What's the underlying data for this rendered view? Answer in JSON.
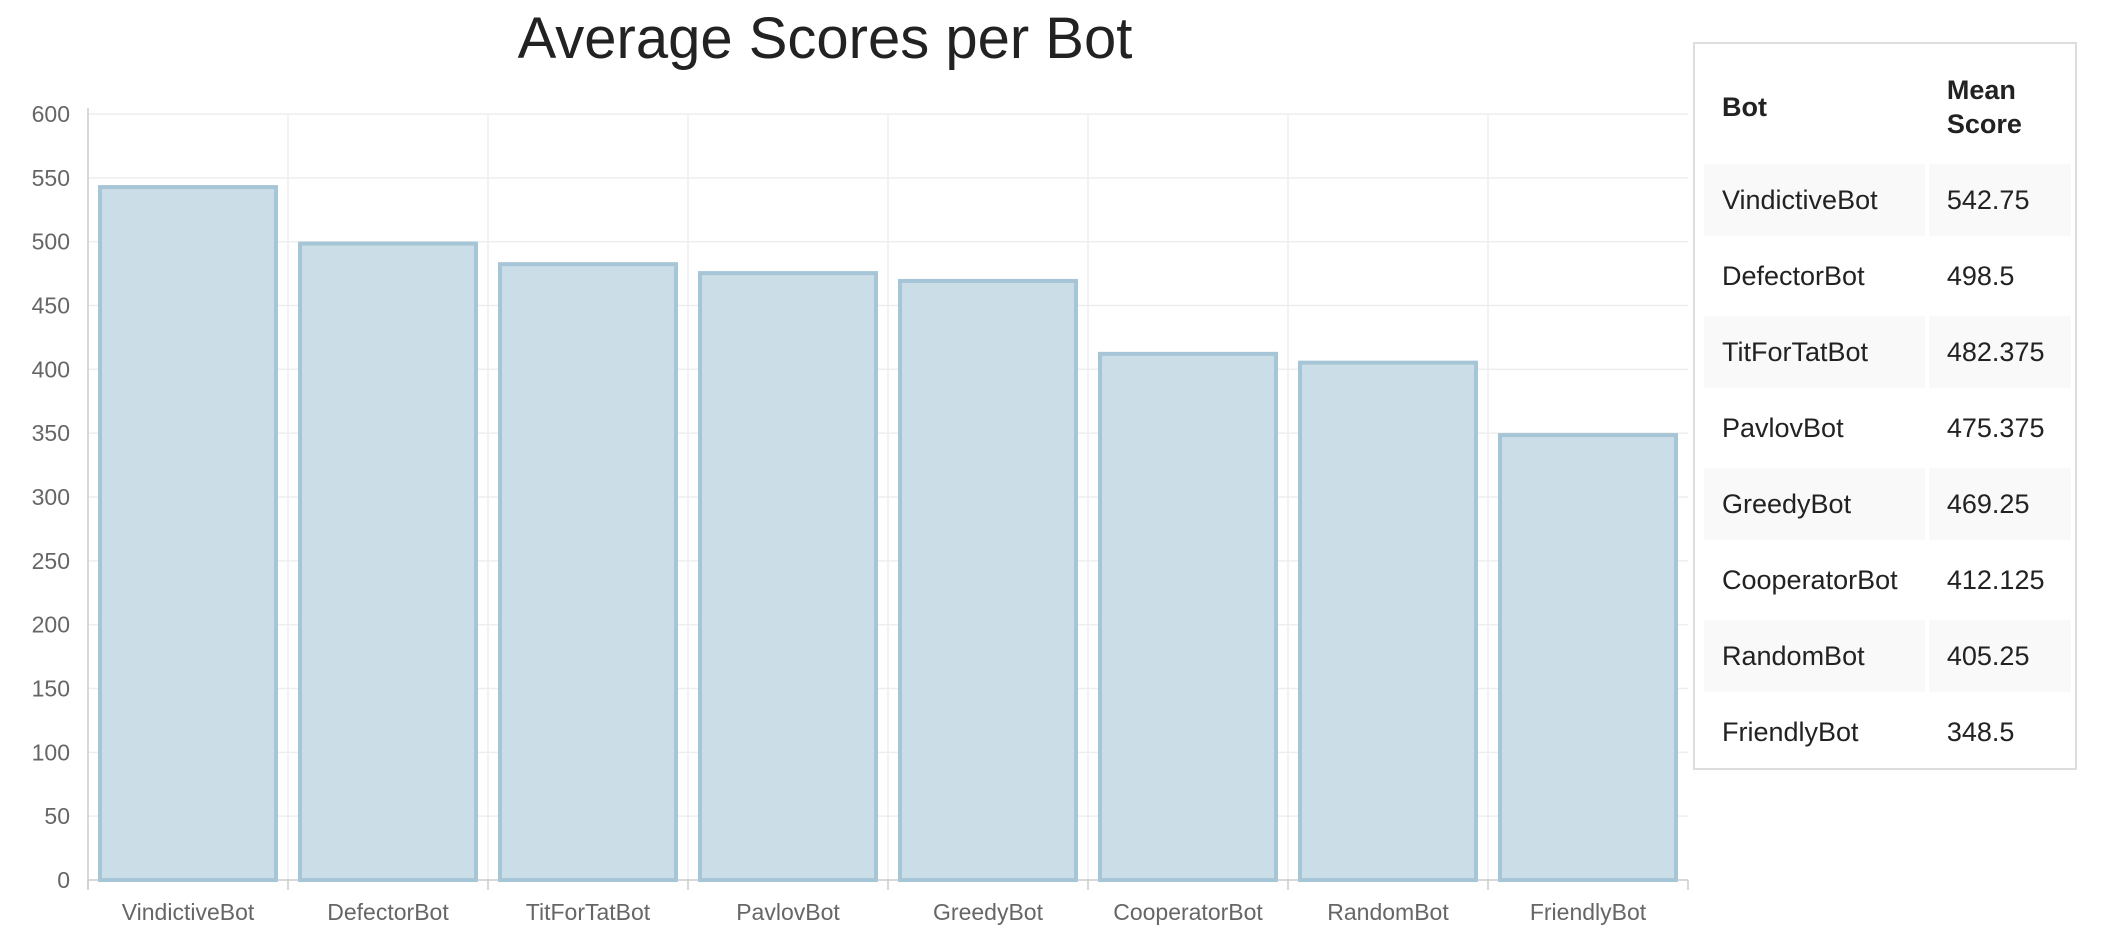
{
  "chart_data": {
    "type": "bar",
    "title": "Average Scores per Bot",
    "categories": [
      "VindictiveBot",
      "DefectorBot",
      "TitForTatBot",
      "PavlovBot",
      "GreedyBot",
      "CooperatorBot",
      "RandomBot",
      "FriendlyBot"
    ],
    "values": [
      542.75,
      498.5,
      482.375,
      475.375,
      469.25,
      412.125,
      405.25,
      348.5
    ],
    "xlabel": "",
    "ylabel": "",
    "ylim": [
      0,
      600
    ],
    "yticks": [
      0,
      50,
      100,
      150,
      200,
      250,
      300,
      350,
      400,
      450,
      500,
      550,
      600
    ],
    "grid": true,
    "legend": "none",
    "colors": {
      "bar_fill": "#cbdde6",
      "bar_stroke": "#a6c5d6",
      "grid": "#eeeeee",
      "axis": "#cccccc"
    }
  },
  "table": {
    "headers": [
      "Bot",
      "Mean Score"
    ],
    "rows": [
      [
        "VindictiveBot",
        "542.75"
      ],
      [
        "DefectorBot",
        "498.5"
      ],
      [
        "TitForTatBot",
        "482.375"
      ],
      [
        "PavlovBot",
        "475.375"
      ],
      [
        "GreedyBot",
        "469.25"
      ],
      [
        "CooperatorBot",
        "412.125"
      ],
      [
        "RandomBot",
        "405.25"
      ],
      [
        "FriendlyBot",
        "348.5"
      ]
    ]
  }
}
